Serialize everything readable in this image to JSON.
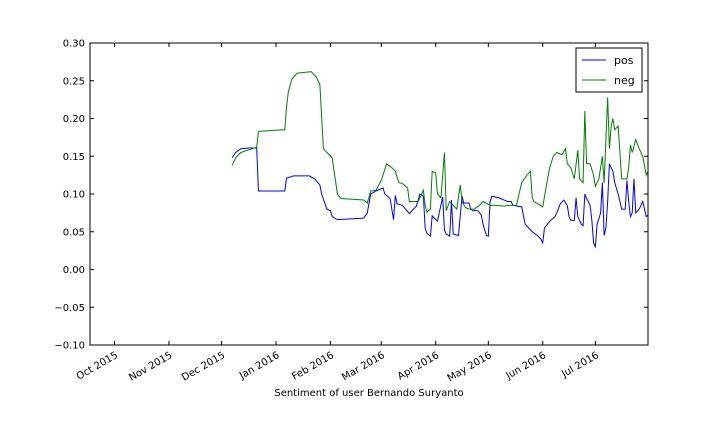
{
  "chart_data": {
    "type": "line",
    "title": "",
    "xlabel": "Sentiment of user Bernando Suryanto",
    "ylabel": "",
    "x_type": "date",
    "xlim": [
      "2015-09-17",
      "2016-07-31"
    ],
    "ylim": [
      -0.1,
      0.3
    ],
    "x_ticks": [
      {
        "date": "2015-10-01",
        "label": "Oct 2015"
      },
      {
        "date": "2015-11-01",
        "label": "Nov 2015"
      },
      {
        "date": "2015-12-01",
        "label": "Dec 2015"
      },
      {
        "date": "2016-01-01",
        "label": "Jan 2016"
      },
      {
        "date": "2016-02-01",
        "label": "Feb 2016"
      },
      {
        "date": "2016-03-01",
        "label": "Mar 2016"
      },
      {
        "date": "2016-04-01",
        "label": "Apr 2016"
      },
      {
        "date": "2016-05-01",
        "label": "May 2016"
      },
      {
        "date": "2016-06-01",
        "label": "Jun 2016"
      },
      {
        "date": "2016-07-01",
        "label": "Jul 2016"
      }
    ],
    "y_ticks": [
      {
        "value": -0.1,
        "label": "−0.10"
      },
      {
        "value": -0.05,
        "label": "−0.05"
      },
      {
        "value": 0.0,
        "label": "0.00"
      },
      {
        "value": 0.05,
        "label": "0.05"
      },
      {
        "value": 0.1,
        "label": "0.10"
      },
      {
        "value": 0.15,
        "label": "0.15"
      },
      {
        "value": 0.2,
        "label": "0.20"
      },
      {
        "value": 0.25,
        "label": "0.25"
      },
      {
        "value": 0.3,
        "label": "0.30"
      }
    ],
    "grid": false,
    "legend_position": "top-right",
    "series": [
      {
        "name": "pos",
        "color": "#0000ff",
        "points": [
          [
            "2015-12-07",
            0.148
          ],
          [
            "2015-12-09",
            0.155
          ],
          [
            "2015-12-12",
            0.16
          ],
          [
            "2015-12-17",
            0.161
          ],
          [
            "2015-12-21",
            0.161
          ],
          [
            "2015-12-22",
            0.104
          ],
          [
            "2016-01-04",
            0.104
          ],
          [
            "2016-01-06",
            0.104
          ],
          [
            "2016-01-07",
            0.121
          ],
          [
            "2016-01-11",
            0.124
          ],
          [
            "2016-01-20",
            0.124
          ],
          [
            "2016-01-23",
            0.12
          ],
          [
            "2016-01-26",
            0.112
          ],
          [
            "2016-01-27",
            0.1
          ],
          [
            "2016-01-30",
            0.08
          ],
          [
            "2016-02-01",
            0.078
          ],
          [
            "2016-02-02",
            0.07
          ],
          [
            "2016-02-05",
            0.066
          ],
          [
            "2016-02-20",
            0.068
          ],
          [
            "2016-02-22",
            0.075
          ],
          [
            "2016-02-24",
            0.1
          ],
          [
            "2016-02-27",
            0.104
          ],
          [
            "2016-03-02",
            0.108
          ],
          [
            "2016-03-03",
            0.1
          ],
          [
            "2016-03-06",
            0.094
          ],
          [
            "2016-03-08",
            0.066
          ],
          [
            "2016-03-09",
            0.098
          ],
          [
            "2016-03-10",
            0.087
          ],
          [
            "2016-03-13",
            0.085
          ],
          [
            "2016-03-17",
            0.074
          ],
          [
            "2016-03-21",
            0.084
          ],
          [
            "2016-03-23",
            0.1
          ],
          [
            "2016-03-25",
            0.097
          ],
          [
            "2016-03-26",
            0.055
          ],
          [
            "2016-03-27",
            0.048
          ],
          [
            "2016-03-29",
            0.044
          ],
          [
            "2016-03-30",
            0.071
          ],
          [
            "2016-04-02",
            0.064
          ],
          [
            "2016-04-05",
            0.096
          ],
          [
            "2016-04-06",
            0.052
          ],
          [
            "2016-04-07",
            0.047
          ],
          [
            "2016-04-09",
            0.044
          ],
          [
            "2016-04-10",
            0.092
          ],
          [
            "2016-04-11",
            0.047
          ],
          [
            "2016-04-14",
            0.045
          ],
          [
            "2016-04-16",
            0.097
          ],
          [
            "2016-04-17",
            0.088
          ],
          [
            "2016-04-20",
            0.088
          ],
          [
            "2016-04-21",
            0.08
          ],
          [
            "2016-04-22",
            0.078
          ],
          [
            "2016-04-25",
            0.078
          ],
          [
            "2016-04-27",
            0.072
          ],
          [
            "2016-04-28",
            0.06
          ],
          [
            "2016-04-29",
            0.052
          ],
          [
            "2016-04-30",
            0.045
          ],
          [
            "2016-05-01",
            0.044
          ],
          [
            "2016-05-02",
            0.09
          ],
          [
            "2016-05-03",
            0.097
          ],
          [
            "2016-05-07",
            0.095
          ],
          [
            "2016-05-12",
            0.09
          ],
          [
            "2016-05-14",
            0.09
          ],
          [
            "2016-05-15",
            0.085
          ],
          [
            "2016-05-20",
            0.083
          ],
          [
            "2016-05-22",
            0.06
          ],
          [
            "2016-05-24",
            0.055
          ],
          [
            "2016-05-26",
            0.05
          ],
          [
            "2016-05-29",
            0.045
          ],
          [
            "2016-05-31",
            0.04
          ],
          [
            "2016-06-01",
            0.035
          ],
          [
            "2016-06-02",
            0.055
          ],
          [
            "2016-06-05",
            0.064
          ],
          [
            "2016-06-08",
            0.07
          ],
          [
            "2016-06-09",
            0.075
          ],
          [
            "2016-06-11",
            0.087
          ],
          [
            "2016-06-13",
            0.092
          ],
          [
            "2016-06-15",
            0.085
          ],
          [
            "2016-06-16",
            0.07
          ],
          [
            "2016-06-17",
            0.065
          ],
          [
            "2016-06-19",
            0.065
          ],
          [
            "2016-06-20",
            0.095
          ],
          [
            "2016-06-21",
            0.07
          ],
          [
            "2016-06-23",
            0.06
          ],
          [
            "2016-06-24",
            0.058
          ],
          [
            "2016-06-25",
            0.1
          ],
          [
            "2016-06-26",
            0.094
          ],
          [
            "2016-06-27",
            0.09
          ],
          [
            "2016-06-28",
            0.085
          ],
          [
            "2016-06-29",
            0.065
          ],
          [
            "2016-06-30",
            0.035
          ],
          [
            "2016-07-01",
            0.03
          ],
          [
            "2016-07-02",
            0.06
          ],
          [
            "2016-07-04",
            0.075
          ],
          [
            "2016-07-05",
            0.115
          ],
          [
            "2016-07-06",
            0.045
          ],
          [
            "2016-07-07",
            0.055
          ],
          [
            "2016-07-08",
            0.09
          ],
          [
            "2016-07-09",
            0.14
          ],
          [
            "2016-07-10",
            0.135
          ],
          [
            "2016-07-11",
            0.13
          ],
          [
            "2016-07-12",
            0.115
          ],
          [
            "2016-07-14",
            0.1
          ],
          [
            "2016-07-16",
            0.08
          ],
          [
            "2016-07-18",
            0.08
          ],
          [
            "2016-07-19",
            0.118
          ],
          [
            "2016-07-20",
            0.09
          ],
          [
            "2016-07-21",
            0.07
          ],
          [
            "2016-07-22",
            0.075
          ],
          [
            "2016-07-23",
            0.12
          ],
          [
            "2016-07-24",
            0.075
          ],
          [
            "2016-07-26",
            0.08
          ],
          [
            "2016-07-28",
            0.09
          ],
          [
            "2016-07-30",
            0.07
          ],
          [
            "2016-07-31",
            0.072
          ]
        ]
      },
      {
        "name": "neg",
        "color": "#008000",
        "points": [
          [
            "2015-12-07",
            0.138
          ],
          [
            "2015-12-09",
            0.148
          ],
          [
            "2015-12-12",
            0.155
          ],
          [
            "2015-12-17",
            0.159
          ],
          [
            "2015-12-21",
            0.162
          ],
          [
            "2015-12-22",
            0.183
          ],
          [
            "2016-01-04",
            0.185
          ],
          [
            "2016-01-06",
            0.185
          ],
          [
            "2016-01-07",
            0.215
          ],
          [
            "2016-01-08",
            0.235
          ],
          [
            "2016-01-10",
            0.252
          ],
          [
            "2016-01-13",
            0.26
          ],
          [
            "2016-01-21",
            0.262
          ],
          [
            "2016-01-24",
            0.255
          ],
          [
            "2016-01-26",
            0.245
          ],
          [
            "2016-01-28",
            0.16
          ],
          [
            "2016-01-30",
            0.155
          ],
          [
            "2016-02-02",
            0.148
          ],
          [
            "2016-02-05",
            0.1
          ],
          [
            "2016-02-07",
            0.094
          ],
          [
            "2016-02-20",
            0.092
          ],
          [
            "2016-02-22",
            0.088
          ],
          [
            "2016-02-24",
            0.104
          ],
          [
            "2016-02-27",
            0.105
          ],
          [
            "2016-03-01",
            0.118
          ],
          [
            "2016-03-04",
            0.14
          ],
          [
            "2016-03-07",
            0.135
          ],
          [
            "2016-03-09",
            0.13
          ],
          [
            "2016-03-11",
            0.115
          ],
          [
            "2016-03-13",
            0.114
          ],
          [
            "2016-03-16",
            0.108
          ],
          [
            "2016-03-17",
            0.09
          ],
          [
            "2016-03-22",
            0.09
          ],
          [
            "2016-03-25",
            0.105
          ],
          [
            "2016-03-26",
            0.085
          ],
          [
            "2016-03-27",
            0.076
          ],
          [
            "2016-03-29",
            0.08
          ],
          [
            "2016-03-30",
            0.13
          ],
          [
            "2016-04-01",
            0.128
          ],
          [
            "2016-04-02",
            0.1
          ],
          [
            "2016-04-04",
            0.095
          ],
          [
            "2016-04-06",
            0.155
          ],
          [
            "2016-04-07",
            0.078
          ],
          [
            "2016-04-09",
            0.09
          ],
          [
            "2016-04-11",
            0.085
          ],
          [
            "2016-04-13",
            0.08
          ],
          [
            "2016-04-15",
            0.112
          ],
          [
            "2016-04-16",
            0.09
          ],
          [
            "2016-04-18",
            0.082
          ],
          [
            "2016-04-20",
            0.08
          ],
          [
            "2016-04-23",
            0.08
          ],
          [
            "2016-04-26",
            0.085
          ],
          [
            "2016-04-28",
            0.09
          ],
          [
            "2016-05-02",
            0.085
          ],
          [
            "2016-05-05",
            0.085
          ],
          [
            "2016-05-10",
            0.084
          ],
          [
            "2016-05-13",
            0.085
          ],
          [
            "2016-05-17",
            0.085
          ],
          [
            "2016-05-20",
            0.115
          ],
          [
            "2016-05-23",
            0.125
          ],
          [
            "2016-05-25",
            0.13
          ],
          [
            "2016-05-26",
            0.095
          ],
          [
            "2016-05-27",
            0.09
          ],
          [
            "2016-05-30",
            0.086
          ],
          [
            "2016-06-01",
            0.083
          ],
          [
            "2016-06-03",
            0.11
          ],
          [
            "2016-06-05",
            0.135
          ],
          [
            "2016-06-07",
            0.15
          ],
          [
            "2016-06-09",
            0.155
          ],
          [
            "2016-06-12",
            0.152
          ],
          [
            "2016-06-14",
            0.16
          ],
          [
            "2016-06-15",
            0.14
          ],
          [
            "2016-06-17",
            0.135
          ],
          [
            "2016-06-19",
            0.12
          ],
          [
            "2016-06-21",
            0.158
          ],
          [
            "2016-06-22",
            0.12
          ],
          [
            "2016-06-24",
            0.115
          ],
          [
            "2016-06-25",
            0.21
          ],
          [
            "2016-06-26",
            0.14
          ],
          [
            "2016-06-28",
            0.14
          ],
          [
            "2016-06-30",
            0.125
          ],
          [
            "2016-07-01",
            0.11
          ],
          [
            "2016-07-03",
            0.12
          ],
          [
            "2016-07-05",
            0.15
          ],
          [
            "2016-07-06",
            0.115
          ],
          [
            "2016-07-08",
            0.228
          ],
          [
            "2016-07-09",
            0.16
          ],
          [
            "2016-07-10",
            0.19
          ],
          [
            "2016-07-11",
            0.2
          ],
          [
            "2016-07-12",
            0.185
          ],
          [
            "2016-07-14",
            0.19
          ],
          [
            "2016-07-16",
            0.12
          ],
          [
            "2016-07-19",
            0.12
          ],
          [
            "2016-07-20",
            0.135
          ],
          [
            "2016-07-21",
            0.165
          ],
          [
            "2016-07-22",
            0.155
          ],
          [
            "2016-07-24",
            0.172
          ],
          [
            "2016-07-26",
            0.16
          ],
          [
            "2016-07-28",
            0.15
          ],
          [
            "2016-07-30",
            0.125
          ],
          [
            "2016-07-31",
            0.13
          ]
        ]
      }
    ]
  }
}
